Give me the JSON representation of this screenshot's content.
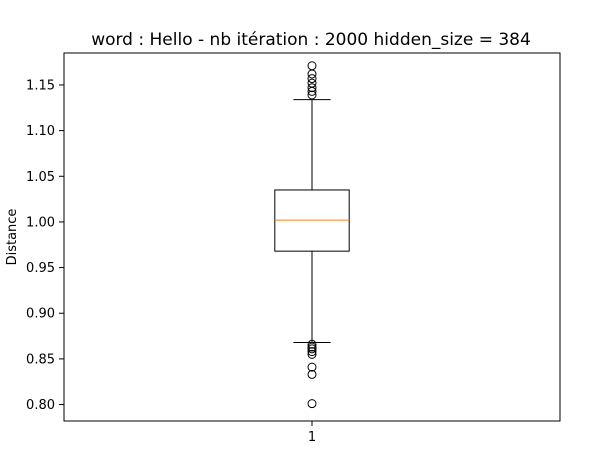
{
  "chart_data": {
    "type": "box",
    "title": "word : Hello - nb itération : 2000 hidden_size = 384",
    "xlabel": "",
    "ylabel": "Distance",
    "ylim": [
      0.782,
      1.185
    ],
    "y_ticks": [
      0.8,
      0.85,
      0.9,
      0.95,
      1.0,
      1.05,
      1.1,
      1.15
    ],
    "y_tick_labels": [
      "0.80",
      "0.85",
      "0.90",
      "0.95",
      "1.00",
      "1.05",
      "1.10",
      "1.15"
    ],
    "categories": [
      "1"
    ],
    "boxes": [
      {
        "category": "1",
        "q1": 0.968,
        "median": 1.002,
        "q3": 1.035,
        "whisker_low": 0.868,
        "whisker_high": 1.134,
        "outliers": [
          1.171,
          1.162,
          1.157,
          1.152,
          1.147,
          1.143,
          1.139,
          0.866,
          0.863,
          0.861,
          0.858,
          0.855,
          0.841,
          0.833,
          0.801
        ]
      }
    ],
    "grid": false,
    "colors": {
      "box": "#000000",
      "median": "#ff7f0e",
      "outlier": "#000000"
    }
  }
}
